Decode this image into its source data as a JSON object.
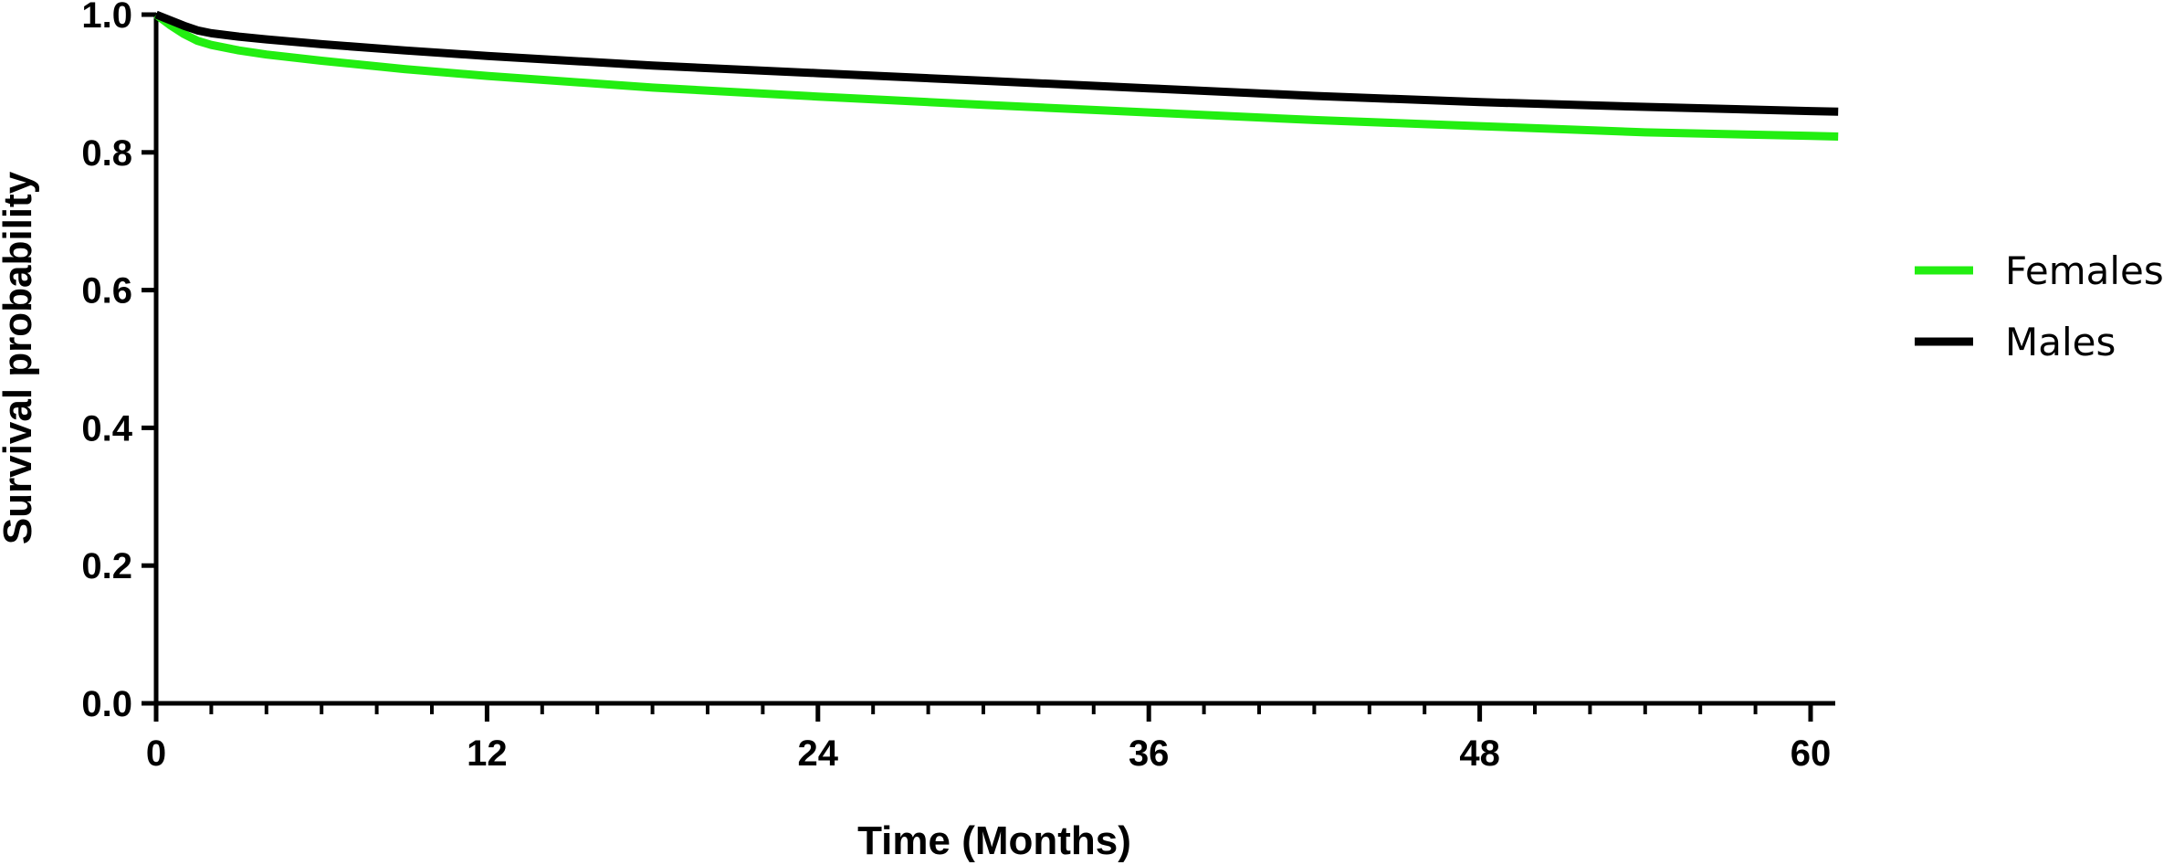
{
  "chart_data": {
    "type": "line",
    "title": "",
    "xlabel": "Time (Months)",
    "ylabel": "Survival probability",
    "xlim": [
      0,
      61
    ],
    "ylim": [
      0.0,
      1.0
    ],
    "x_ticks": [
      0,
      12,
      24,
      36,
      48,
      60
    ],
    "x_tick_labels": [
      "0",
      "12",
      "24",
      "36",
      "48",
      "60"
    ],
    "x_minor_tick_step": 2,
    "y_ticks": [
      0.0,
      0.2,
      0.4,
      0.6,
      0.8,
      1.0
    ],
    "y_tick_labels": [
      "0.0",
      "0.2",
      "0.4",
      "0.6",
      "0.8",
      "1.0"
    ],
    "grid": false,
    "legend_position": "right",
    "series": [
      {
        "name": "Females",
        "color": "#22ee11",
        "x": [
          0,
          0.5,
          1,
          1.5,
          2,
          3,
          4,
          6,
          9,
          12,
          18,
          24,
          30,
          36,
          42,
          48,
          54,
          60,
          61
        ],
        "y": [
          1.0,
          0.985,
          0.972,
          0.962,
          0.956,
          0.948,
          0.942,
          0.933,
          0.921,
          0.911,
          0.894,
          0.881,
          0.869,
          0.858,
          0.847,
          0.838,
          0.829,
          0.824,
          0.823
        ]
      },
      {
        "name": "Males",
        "color": "#000000",
        "x": [
          0,
          0.5,
          1,
          1.5,
          2,
          3,
          4,
          6,
          9,
          12,
          18,
          24,
          30,
          36,
          42,
          48,
          54,
          60,
          61
        ],
        "y": [
          1.0,
          0.992,
          0.984,
          0.977,
          0.973,
          0.968,
          0.964,
          0.957,
          0.948,
          0.94,
          0.926,
          0.915,
          0.904,
          0.893,
          0.882,
          0.873,
          0.866,
          0.86,
          0.859
        ]
      }
    ]
  }
}
